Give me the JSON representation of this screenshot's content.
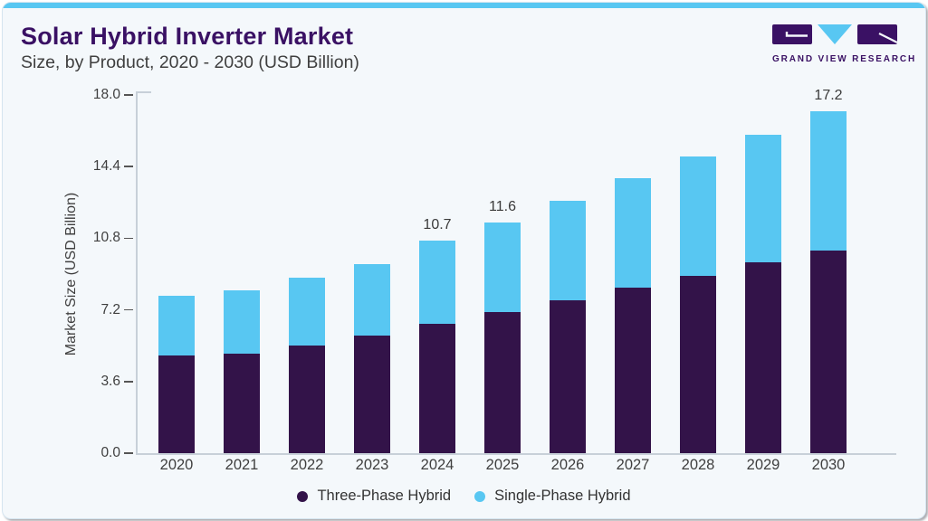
{
  "page": {
    "title": "Solar Hybrid Inverter Market",
    "subtitle": "Size, by Product, 2020 - 2030 (USD Billion)"
  },
  "logo": {
    "text": "GRAND VIEW RESEARCH"
  },
  "colors": {
    "accent_blue": "#58C7F2",
    "bar_dark_purple": "#331349",
    "brand_purple": "#3A1164",
    "card_bg": "#F4F8FB",
    "axis_line": "#C7D0D8",
    "tick_mark": "#555555",
    "text": "#3F3F3F"
  },
  "chart_data": {
    "type": "bar",
    "stacked": true,
    "title": "Solar Hybrid Inverter Market Size, by Product, 2020 - 2030 (USD Billion)",
    "categories": [
      "2020",
      "2021",
      "2022",
      "2023",
      "2024",
      "2025",
      "2026",
      "2027",
      "2028",
      "2029",
      "2030"
    ],
    "series": [
      {
        "name": "Three-Phase Hybrid",
        "color": "#331349",
        "values": [
          4.9,
          5.0,
          5.4,
          5.9,
          6.5,
          7.1,
          7.7,
          8.3,
          8.9,
          9.6,
          10.2
        ]
      },
      {
        "name": "Single-Phase Hybrid",
        "color": "#58C7F2",
        "values": [
          3.0,
          3.2,
          3.4,
          3.6,
          4.2,
          4.5,
          5.0,
          5.5,
          6.0,
          6.4,
          7.0
        ]
      }
    ],
    "totals": [
      7.9,
      8.2,
      8.8,
      9.5,
      10.7,
      11.6,
      12.7,
      13.8,
      14.9,
      16.0,
      17.2
    ],
    "data_labels": {
      "2024": "10.7",
      "2025": "11.6",
      "2030": "17.2"
    },
    "ylabel": "Market Size (USD Billion)",
    "xlabel": "",
    "yticks": [
      "0.0",
      "3.6",
      "7.2",
      "10.8",
      "14.4",
      "18.0"
    ],
    "ylim": [
      0,
      18
    ],
    "grid": false,
    "legend_position": "bottom",
    "legend": [
      "Three-Phase Hybrid",
      "Single-Phase Hybrid"
    ]
  }
}
